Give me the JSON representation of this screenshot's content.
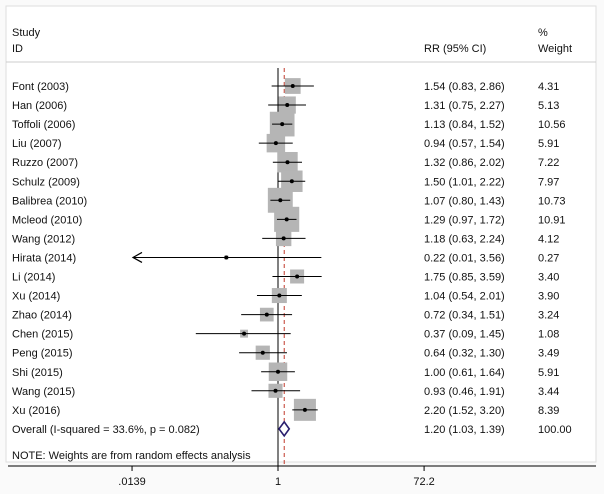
{
  "chart_data": {
    "type": "forest",
    "header": {
      "study": "Study",
      "id": "ID",
      "effect": "RR (95% CI)",
      "pct": "%",
      "weight": "Weight"
    },
    "xscale": "log",
    "xticks": [
      {
        "value": 0.0139,
        "label": ".0139"
      },
      {
        "value": 1,
        "label": "1"
      },
      {
        "value": 72.2,
        "label": "72.2"
      }
    ],
    "null_line": 1,
    "studies": [
      {
        "id": "Font (2003)",
        "rr": 1.54,
        "lo": 0.83,
        "hi": 2.86,
        "text": "1.54 (0.83, 2.86)",
        "weight": "4.31"
      },
      {
        "id": "Han (2006)",
        "rr": 1.31,
        "lo": 0.75,
        "hi": 2.27,
        "text": "1.31 (0.75, 2.27)",
        "weight": "5.13"
      },
      {
        "id": "Toffoli (2006)",
        "rr": 1.13,
        "lo": 0.84,
        "hi": 1.52,
        "text": "1.13 (0.84, 1.52)",
        "weight": "10.56"
      },
      {
        "id": "Liu (2007)",
        "rr": 0.94,
        "lo": 0.57,
        "hi": 1.54,
        "text": "0.94 (0.57, 1.54)",
        "weight": "5.91"
      },
      {
        "id": "Ruzzo (2007)",
        "rr": 1.32,
        "lo": 0.86,
        "hi": 2.02,
        "text": "1.32 (0.86, 2.02)",
        "weight": "7.22"
      },
      {
        "id": "Schulz (2009)",
        "rr": 1.5,
        "lo": 1.01,
        "hi": 2.22,
        "text": "1.50 (1.01, 2.22)",
        "weight": "7.97"
      },
      {
        "id": "Balibrea (2010)",
        "rr": 1.07,
        "lo": 0.8,
        "hi": 1.43,
        "text": "1.07 (0.80, 1.43)",
        "weight": "10.73"
      },
      {
        "id": "Mcleod (2010)",
        "rr": 1.29,
        "lo": 0.97,
        "hi": 1.72,
        "text": "1.29 (0.97, 1.72)",
        "weight": "10.91"
      },
      {
        "id": "Wang (2012)",
        "rr": 1.18,
        "lo": 0.63,
        "hi": 2.24,
        "text": "1.18 (0.63, 2.24)",
        "weight": "4.12"
      },
      {
        "id": "Hirata (2014)",
        "rr": 0.22,
        "lo": 0.01,
        "hi": 3.56,
        "text": "0.22 (0.01, 3.56)",
        "weight": "0.27"
      },
      {
        "id": "Li (2014)",
        "rr": 1.75,
        "lo": 0.85,
        "hi": 3.59,
        "text": "1.75 (0.85, 3.59)",
        "weight": "3.40"
      },
      {
        "id": "Xu (2014)",
        "rr": 1.04,
        "lo": 0.54,
        "hi": 2.01,
        "text": "1.04 (0.54, 2.01)",
        "weight": "3.90"
      },
      {
        "id": "Zhao (2014)",
        "rr": 0.72,
        "lo": 0.34,
        "hi": 1.51,
        "text": "0.72 (0.34, 1.51)",
        "weight": "3.24"
      },
      {
        "id": "Chen (2015)",
        "rr": 0.37,
        "lo": 0.09,
        "hi": 1.45,
        "text": "0.37 (0.09, 1.45)",
        "weight": "1.08"
      },
      {
        "id": "Peng (2015)",
        "rr": 0.64,
        "lo": 0.32,
        "hi": 1.3,
        "text": "0.64 (0.32, 1.30)",
        "weight": "3.49"
      },
      {
        "id": "Shi (2015)",
        "rr": 1.0,
        "lo": 0.61,
        "hi": 1.64,
        "text": "1.00 (0.61, 1.64)",
        "weight": "5.91"
      },
      {
        "id": "Wang (2015)",
        "rr": 0.93,
        "lo": 0.46,
        "hi": 1.91,
        "text": "0.93 (0.46, 1.91)",
        "weight": "3.44"
      },
      {
        "id": "Xu (2016)",
        "rr": 2.2,
        "lo": 1.52,
        "hi": 3.2,
        "text": "2.20 (1.52, 3.20)",
        "weight": "8.39"
      }
    ],
    "overall": {
      "label": "Overall  (I-squared = 33.6%, p = 0.082)",
      "rr": 1.2,
      "lo": 1.03,
      "hi": 1.39,
      "text": "1.20 (1.03, 1.39)",
      "weight": "100.00"
    },
    "note": "NOTE: Weights are from random effects analysis",
    "colors": {
      "box": "#b5b5b5",
      "diamond": "#2a1f6e",
      "overall_line": "#c0392b"
    }
  }
}
